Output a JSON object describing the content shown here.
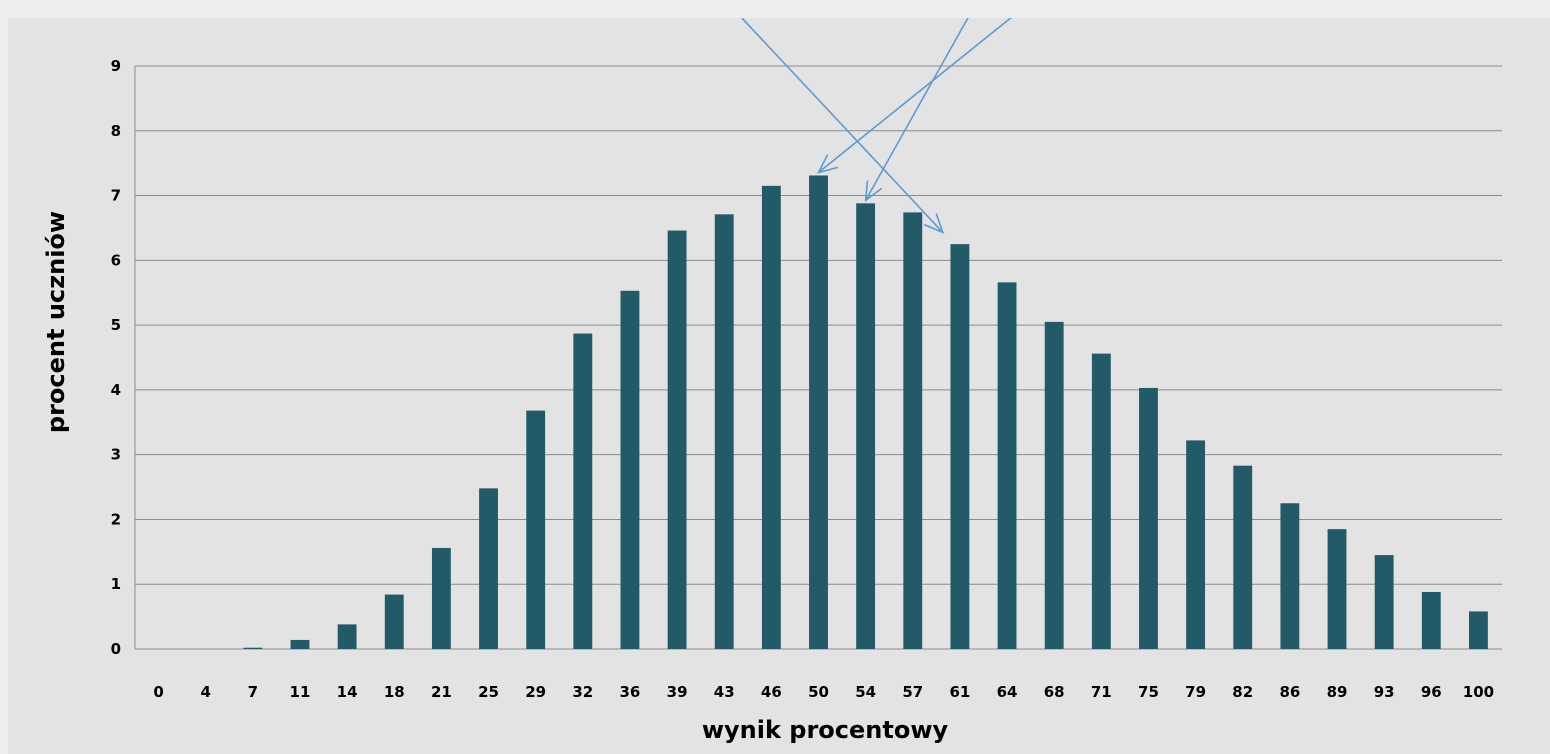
{
  "chart_data": {
    "type": "bar",
    "xlabel": "wynik procentowy",
    "ylabel": "procent uczniów",
    "ylim": [
      0,
      9
    ],
    "yticks": [
      0,
      1,
      2,
      3,
      4,
      5,
      6,
      7,
      8,
      9
    ],
    "grid": true,
    "categories": [
      "0",
      "4",
      "7",
      "11",
      "14",
      "18",
      "21",
      "25",
      "29",
      "32",
      "36",
      "39",
      "43",
      "46",
      "50",
      "54",
      "57",
      "61",
      "64",
      "68",
      "71",
      "75",
      "79",
      "82",
      "86",
      "89",
      "93",
      "96",
      "100"
    ],
    "values": [
      0,
      0,
      0.02,
      0.14,
      0.38,
      0.84,
      1.56,
      2.48,
      3.68,
      4.87,
      5.53,
      6.46,
      6.71,
      7.15,
      7.31,
      6.88,
      6.74,
      6.25,
      5.66,
      5.05,
      4.56,
      4.03,
      3.22,
      2.83,
      2.25,
      1.85,
      1.45,
      0.88,
      0.58
    ],
    "bar_color": "#235a67",
    "grid_color": "#8c8c8c",
    "annotations": [
      {
        "type": "arrow",
        "points_to": "50",
        "color": "#5b9bd5"
      },
      {
        "type": "arrow",
        "points_to": "54",
        "color": "#5b9bd5"
      },
      {
        "type": "arrow",
        "points_to": "57",
        "color": "#5b9bd5"
      }
    ]
  }
}
